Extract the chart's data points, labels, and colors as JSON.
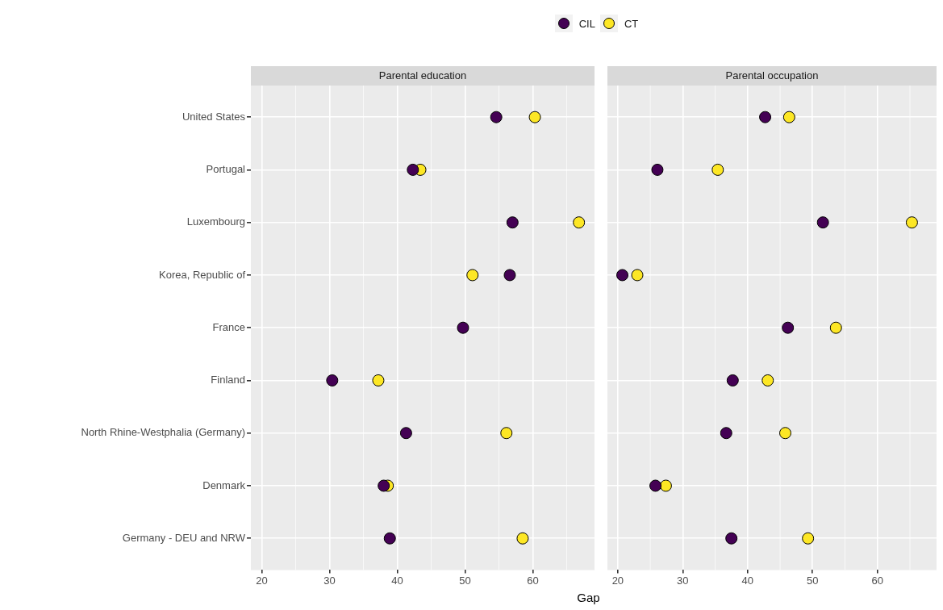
{
  "chart_data": [
    {
      "type": "scatter",
      "title": "Parental education",
      "orientation": "horizontal",
      "xlabel": "Gap",
      "legend": "top",
      "grid": true,
      "marker": "circle",
      "categories": [
        "United States",
        "Portugal",
        "Luxembourg",
        "Korea, Republic of",
        "France",
        "Finland",
        "North Rhine-Westphalia (Germany)",
        "Denmark",
        "Germany - DEU and NRW"
      ],
      "xlim": [
        18.4,
        69.1
      ],
      "xticks": [
        20,
        30,
        40,
        50,
        60
      ],
      "series": [
        {
          "name": "CIL",
          "color": "#440154",
          "values": [
            54.6,
            42.3,
            57.0,
            56.6,
            49.7,
            30.4,
            41.3,
            38.0,
            38.9
          ]
        },
        {
          "name": "CT",
          "color": "#fde725",
          "values": [
            60.3,
            43.4,
            66.8,
            51.1,
            null,
            37.2,
            56.1,
            38.6,
            58.5
          ]
        }
      ]
    },
    {
      "type": "scatter",
      "title": "Parental occupation",
      "orientation": "horizontal",
      "grid": true,
      "marker": "circle",
      "tick_labels": "x",
      "xlim": [
        18.4,
        69.1
      ],
      "xticks": [
        20,
        30,
        40,
        50,
        60
      ],
      "series": [
        {
          "color": "#440154",
          "values": [
            42.7,
            26.1,
            51.6,
            20.7,
            46.2,
            37.7,
            36.7,
            25.8,
            37.5
          ]
        },
        {
          "color": "#fde725",
          "values": [
            46.4,
            35.4,
            65.3,
            23.0,
            53.6,
            43.1,
            45.8,
            27.4,
            49.3
          ]
        }
      ]
    }
  ]
}
